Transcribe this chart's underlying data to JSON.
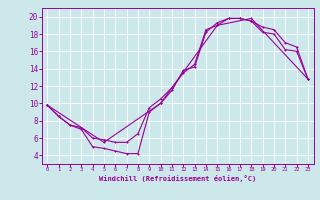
{
  "xlabel": "Windchill (Refroidissement éolien,°C)",
  "bg_color": "#cce8ea",
  "grid_color": "#ffffff",
  "line_color": "#990099",
  "xlim": [
    -0.5,
    23.5
  ],
  "ylim": [
    3,
    21
  ],
  "xticks": [
    0,
    1,
    2,
    3,
    4,
    5,
    6,
    7,
    8,
    9,
    10,
    11,
    12,
    13,
    14,
    15,
    16,
    17,
    18,
    19,
    20,
    21,
    22,
    23
  ],
  "yticks": [
    4,
    6,
    8,
    10,
    12,
    14,
    16,
    18,
    20
  ],
  "line1_x": [
    0,
    1,
    2,
    3,
    4,
    5,
    6,
    7,
    8,
    9,
    10,
    11,
    12,
    13,
    14,
    15,
    16,
    17,
    18,
    19,
    20,
    21,
    22,
    23
  ],
  "line1_y": [
    9.8,
    8.5,
    7.5,
    7.0,
    5.0,
    4.8,
    4.5,
    4.2,
    4.2,
    9.0,
    10.0,
    11.5,
    13.8,
    14.2,
    18.2,
    19.3,
    19.8,
    19.8,
    19.5,
    18.2,
    18.0,
    16.2,
    16.0,
    12.8
  ],
  "line2_x": [
    0,
    1,
    2,
    3,
    4,
    5,
    6,
    7,
    8,
    9,
    10,
    11,
    12,
    13,
    14,
    15,
    16,
    17,
    18,
    19,
    20,
    21,
    22,
    23
  ],
  "line2_y": [
    9.8,
    8.5,
    7.5,
    7.2,
    6.0,
    5.8,
    5.5,
    5.5,
    6.5,
    9.5,
    10.5,
    11.8,
    13.5,
    14.5,
    18.5,
    19.0,
    19.8,
    19.8,
    19.5,
    18.8,
    18.5,
    17.0,
    16.5,
    12.8
  ],
  "line3_x": [
    0,
    5,
    10,
    15,
    18,
    23
  ],
  "line3_y": [
    9.8,
    5.5,
    10.0,
    19.0,
    19.8,
    12.8
  ]
}
